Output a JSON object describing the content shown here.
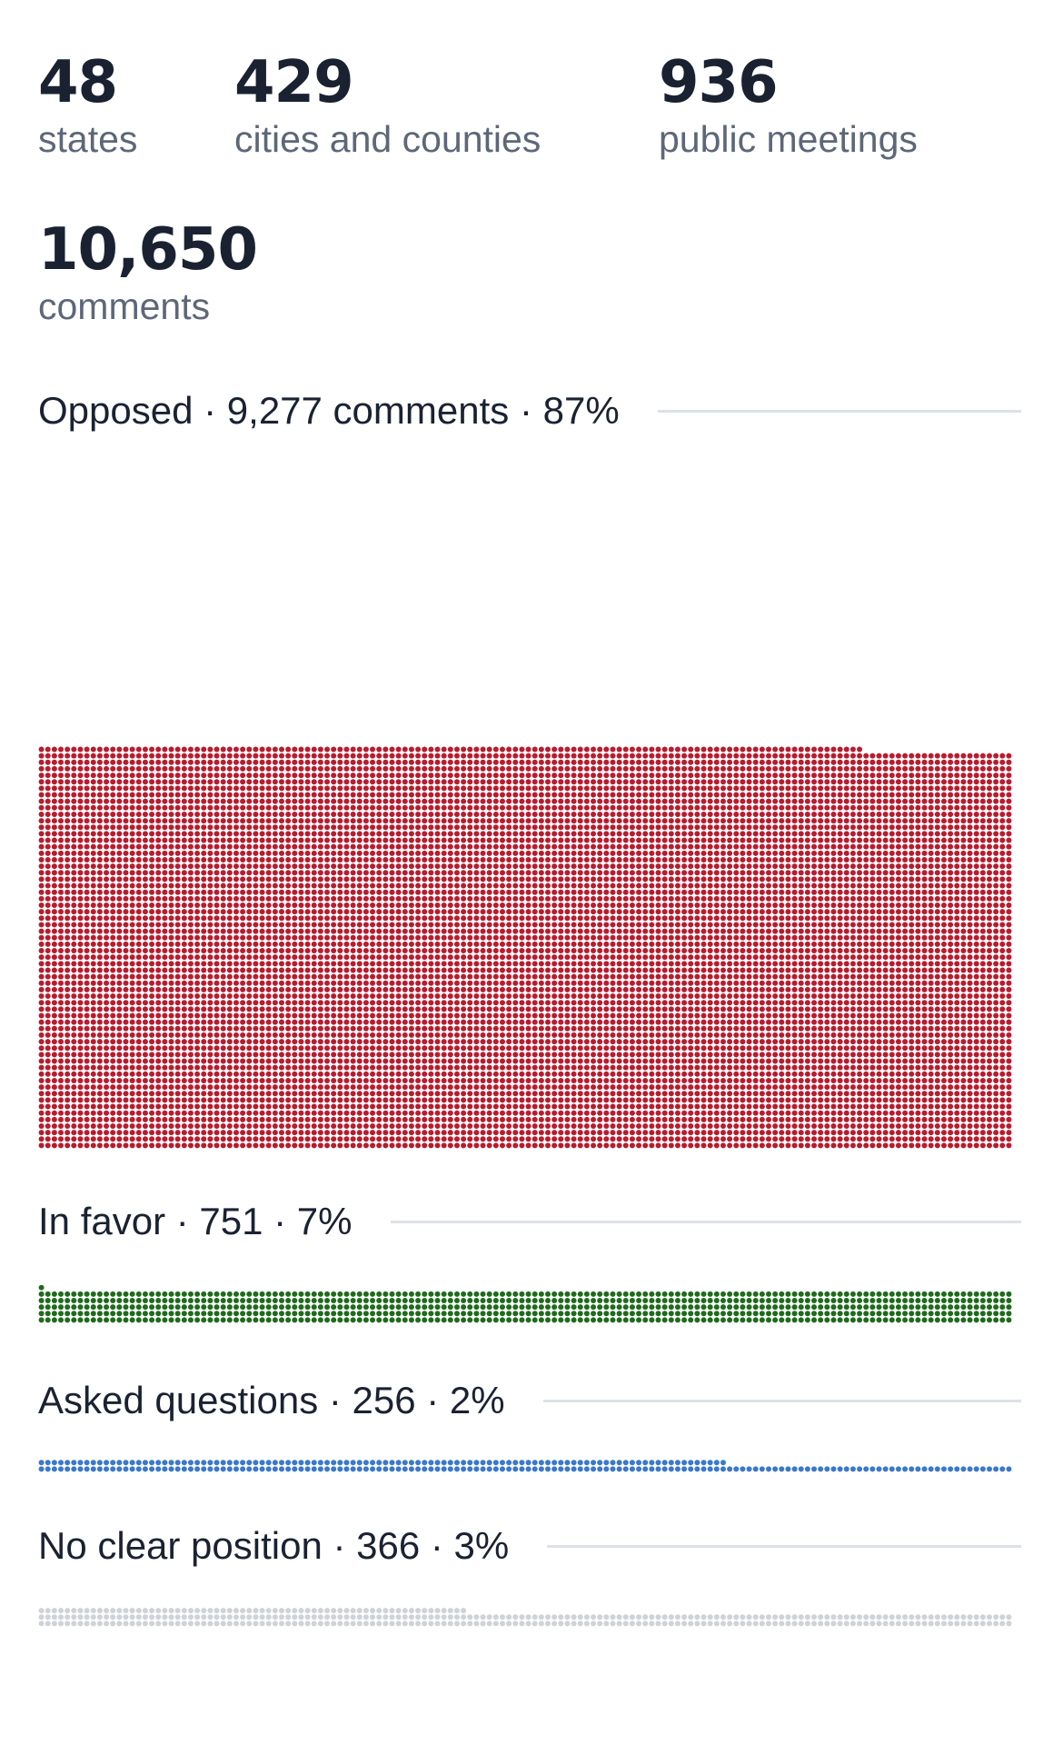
{
  "stats": {
    "states": {
      "value": "48",
      "label": "states"
    },
    "cities": {
      "value": "429",
      "label": "cities and counties"
    },
    "meetings": {
      "value": "936",
      "label": "public meetings"
    },
    "comments": {
      "value": "10,650",
      "label": "comments"
    }
  },
  "chart_data": {
    "type": "waffle",
    "total": 10650,
    "categories": [
      {
        "name": "Opposed",
        "count": 9277,
        "percent": 87,
        "color": "#b81c2e",
        "label": "Opposed · 9,277 comments · 87%"
      },
      {
        "name": "In favor",
        "count": 751,
        "percent": 7,
        "color": "#1f6b1c",
        "label": "In favor · 751 · 7%"
      },
      {
        "name": "Asked questions",
        "count": 256,
        "percent": 2,
        "color": "#3a78cc",
        "label": "Asked questions · 256 · 2%"
      },
      {
        "name": "No clear position",
        "count": 366,
        "percent": 3,
        "color": "#cfd2d6",
        "label": "No clear position · 366 · 3%"
      }
    ]
  }
}
